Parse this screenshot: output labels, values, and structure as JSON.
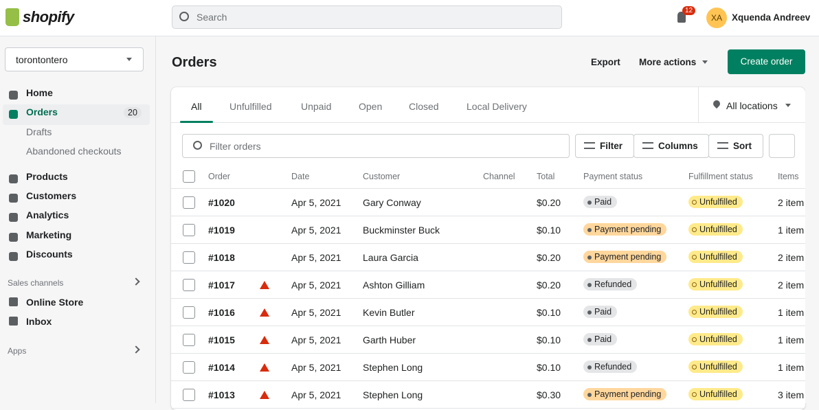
{
  "header": {
    "logo": "shopify",
    "search_placeholder": "Search",
    "notification_count": "12",
    "avatar_initials": "XA",
    "user_name": "Xquenda Andreev"
  },
  "sidebar": {
    "store": "torontontero",
    "nav": [
      {
        "label": "Home"
      },
      {
        "label": "Orders",
        "badge": "20",
        "active": true
      },
      {
        "label": "Drafts",
        "sub": true
      },
      {
        "label": "Abandoned checkouts",
        "sub": true
      },
      {
        "label": "Products"
      },
      {
        "label": "Customers"
      },
      {
        "label": "Analytics"
      },
      {
        "label": "Marketing"
      },
      {
        "label": "Discounts"
      }
    ],
    "sales_channels": {
      "title": "Sales channels",
      "items": [
        "Online Store",
        "Inbox"
      ]
    },
    "apps": "Apps"
  },
  "page": {
    "title": "Orders",
    "export": "Export",
    "more_actions": "More actions",
    "create": "Create order"
  },
  "tabs": {
    "items": [
      "All",
      "Unfulfilled",
      "Unpaid",
      "Open",
      "Closed",
      "Local Delivery"
    ],
    "selected": 0,
    "locations": "All locations"
  },
  "toolbar": {
    "filter_placeholder": "Filter orders",
    "filter": "Filter",
    "columns": "Columns",
    "sort": "Sort"
  },
  "table": {
    "columns": [
      "Order",
      "Date",
      "Customer",
      "Channel",
      "Total",
      "Payment status",
      "Fulfillment status",
      "Items"
    ],
    "fulfillment_color": "#ffea8a",
    "rows": [
      {
        "order": "#1020",
        "flagged": false,
        "date": "Apr 5, 2021",
        "customer": "Gary Conway",
        "total": "$0.20",
        "payment": "Paid",
        "payment_color": "#e4e5e7",
        "fulfillment": "Unfulfilled",
        "items": "2 item"
      },
      {
        "order": "#1019",
        "flagged": false,
        "date": "Apr 5, 2021",
        "customer": "Buckminster Buck",
        "total": "$0.10",
        "payment": "Payment pending",
        "payment_color": "#ffd79d",
        "fulfillment": "Unfulfilled",
        "items": "1 item"
      },
      {
        "order": "#1018",
        "flagged": false,
        "date": "Apr 5, 2021",
        "customer": "Laura Garcia",
        "total": "$0.20",
        "payment": "Payment pending",
        "payment_color": "#ffd79d",
        "fulfillment": "Unfulfilled",
        "items": "2 item"
      },
      {
        "order": "#1017",
        "flagged": true,
        "date": "Apr 5, 2021",
        "customer": "Ashton Gilliam",
        "total": "$0.20",
        "payment": "Refunded",
        "payment_color": "#e4e5e7",
        "fulfillment": "Unfulfilled",
        "items": "2 item"
      },
      {
        "order": "#1016",
        "flagged": true,
        "date": "Apr 5, 2021",
        "customer": "Kevin Butler",
        "total": "$0.10",
        "payment": "Paid",
        "payment_color": "#e4e5e7",
        "fulfillment": "Unfulfilled",
        "items": "1 item"
      },
      {
        "order": "#1015",
        "flagged": true,
        "date": "Apr 5, 2021",
        "customer": "Garth Huber",
        "total": "$0.10",
        "payment": "Paid",
        "payment_color": "#e4e5e7",
        "fulfillment": "Unfulfilled",
        "items": "1 item"
      },
      {
        "order": "#1014",
        "flagged": true,
        "date": "Apr 5, 2021",
        "customer": "Stephen Long",
        "total": "$0.10",
        "payment": "Refunded",
        "payment_color": "#e4e5e7",
        "fulfillment": "Unfulfilled",
        "items": "1 item"
      },
      {
        "order": "#1013",
        "flagged": true,
        "date": "Apr 5, 2021",
        "customer": "Stephen Long",
        "total": "$0.30",
        "payment": "Payment pending",
        "payment_color": "#ffd79d",
        "fulfillment": "Unfulfilled",
        "items": "3 item"
      }
    ]
  }
}
